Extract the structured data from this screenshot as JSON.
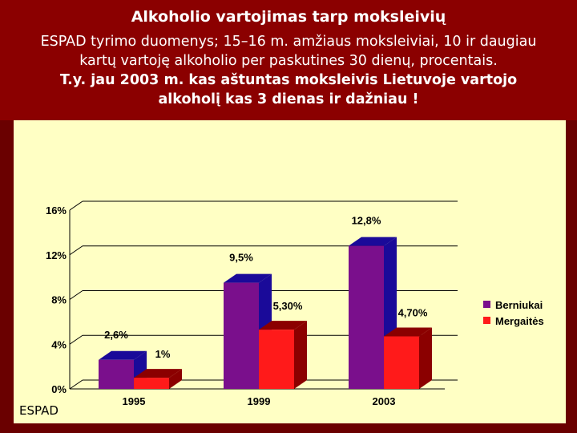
{
  "header": {
    "title": "Alkoholio vartojimas tarp  moksleivių",
    "subtitle_line1": "ESPAD tyrimo duomenys; 15–16 m. amžiaus moksleiviai, 10 ir daugiau",
    "subtitle_line2": "kartų vartoję alkoholio per paskutines 30 dienų, procentais.",
    "emphasis_line1": "T.y. jau 2003 m. kas aštuntas moksleivis Lietuvoje vartojo",
    "emphasis_line2": "alkoholį kas 3 dienas ir dažniau !"
  },
  "source_label": "ESPAD",
  "colors": {
    "background": "#8b0000",
    "panel": "#ffffc4",
    "boys": "#7a0f8c",
    "boys_side": "#1a0a99",
    "girls": "#ff1a1a",
    "girls_side": "#8b0000"
  },
  "chart_data": {
    "type": "bar",
    "categories": [
      "1995",
      "1999",
      "2003"
    ],
    "ylim": [
      0,
      16
    ],
    "yticks": [
      0,
      4,
      8,
      12,
      16
    ],
    "ytick_labels": [
      "0%",
      "4%",
      "8%",
      "12%",
      "16%"
    ],
    "series": [
      {
        "name": "Berniukai",
        "values": [
          2.6,
          9.5,
          12.8
        ],
        "labels": [
          "2,6%",
          "9,5%",
          "12,8%"
        ]
      },
      {
        "name": "Mergaitės",
        "values": [
          1.0,
          5.3,
          4.7
        ],
        "labels": [
          "1%",
          "5,30%",
          "4,70%"
        ]
      }
    ],
    "legend_position": "right",
    "grid": true
  }
}
